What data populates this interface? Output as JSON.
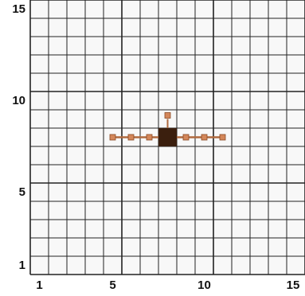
{
  "board": {
    "columns": 15,
    "rows": 15,
    "background_color": "#f8f8f8",
    "grid_line_color": "#222222",
    "major_line_every": 5,
    "x_labels": [
      "1",
      "5",
      "10",
      "15"
    ],
    "y_labels": [
      "15",
      "10",
      "5",
      "1"
    ],
    "x_label_cells": [
      1,
      5,
      10,
      15
    ],
    "y_label_cells": [
      15,
      10,
      5,
      1
    ]
  },
  "pieces": {
    "center_block": {
      "col": 8,
      "row": 8,
      "color": "#3b1f0e"
    },
    "top_marker": {
      "col": 8,
      "row": 9,
      "color": "#d4875a"
    },
    "horizontal_arm": {
      "row": 8,
      "from_col": 5,
      "to_col": 11,
      "node_cols": [
        5,
        6,
        7,
        9,
        10,
        11
      ],
      "line_color": "#b06a3f",
      "node_color": "#d4875a"
    }
  }
}
